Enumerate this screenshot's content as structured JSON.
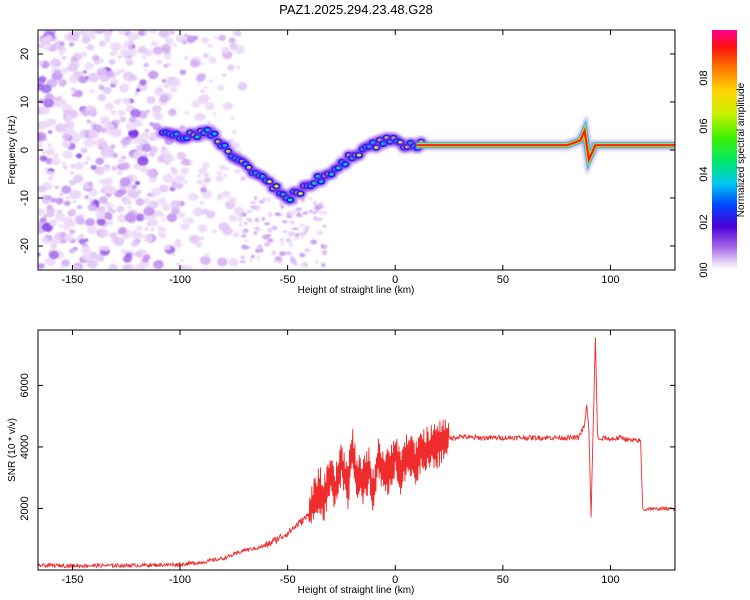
{
  "title": "PAZ1.2025.294.23.48.G28",
  "chart_data": [
    {
      "type": "heatmap",
      "xlabel": "Height of straight line (km)",
      "ylabel": "Frequency (Hz)",
      "xlim": [
        -166,
        130
      ],
      "ylim": [
        -25,
        25
      ],
      "xticks": [
        -150,
        -100,
        -50,
        0,
        50,
        100
      ],
      "yticks": [
        -20,
        -10,
        0,
        10,
        20
      ],
      "colorbar": {
        "label": "Normalized spectral amplitude",
        "range": [
          0,
          1
        ],
        "ticks": [
          0.0,
          0.2,
          0.4,
          0.6,
          0.8
        ]
      },
      "ridge": {
        "name": "frequency ridge",
        "x": [
          -108,
          -100,
          -92,
          -88,
          -82,
          -76,
          -70,
          -62,
          -55,
          -50,
          -45,
          -40,
          -35,
          -30,
          -25,
          -20,
          -15,
          -10,
          -5,
          0,
          5,
          10,
          20,
          40,
          60,
          80,
          86,
          88,
          90,
          93,
          100,
          120,
          130
        ],
        "y": [
          3,
          3,
          3,
          4,
          2,
          -1,
          -3,
          -6,
          -8,
          -10,
          -9,
          -7,
          -6,
          -5,
          -3,
          -1,
          0,
          1,
          2,
          2,
          1,
          1,
          1,
          1,
          1,
          1,
          2,
          4,
          -2,
          1,
          1,
          1,
          1
        ]
      },
      "noise_region_x": [
        -166,
        -80
      ]
    },
    {
      "type": "line",
      "xlabel": "Height of straight line (km)",
      "ylabel": "SNR (10 * v/v)",
      "xlim": [
        -166,
        130
      ],
      "ylim": [
        0,
        7800
      ],
      "xticks": [
        -150,
        -100,
        -50,
        0,
        50,
        100
      ],
      "yticks": [
        2000,
        4000,
        6000
      ],
      "series": [
        {
          "name": "SNR",
          "color": "#ef2b2b",
          "x": [
            -166,
            -150,
            -120,
            -100,
            -90,
            -80,
            -75,
            -70,
            -65,
            -60,
            -55,
            -50,
            -45,
            -40,
            -37,
            -35,
            -33,
            -30,
            -28,
            -25,
            -22,
            -20,
            -18,
            -15,
            -12,
            -10,
            -8,
            -5,
            -2,
            0,
            3,
            5,
            8,
            10,
            12,
            15,
            18,
            20,
            25,
            30,
            35,
            40,
            50,
            60,
            70,
            80,
            85,
            88,
            89,
            90,
            91,
            92,
            93,
            94,
            95,
            97,
            100,
            105,
            110,
            114,
            115,
            116,
            118,
            120,
            125,
            130
          ],
          "y": [
            150,
            140,
            150,
            180,
            250,
            380,
            500,
            650,
            700,
            800,
            1000,
            1200,
            1500,
            1800,
            2400,
            2600,
            2300,
            3000,
            2500,
            3500,
            2700,
            4000,
            3000,
            2900,
            3300,
            2400,
            3700,
            3100,
            3300,
            3900,
            3100,
            3800,
            3600,
            3400,
            3900,
            3900,
            4000,
            4100,
            4250,
            4350,
            4300,
            4300,
            4300,
            4300,
            4300,
            4300,
            4300,
            4700,
            5400,
            4500,
            1700,
            4700,
            7500,
            4400,
            4200,
            4300,
            4250,
            4300,
            4200,
            4200,
            2000,
            1950,
            2000,
            1980,
            2000,
            1980
          ]
        }
      ]
    }
  ]
}
